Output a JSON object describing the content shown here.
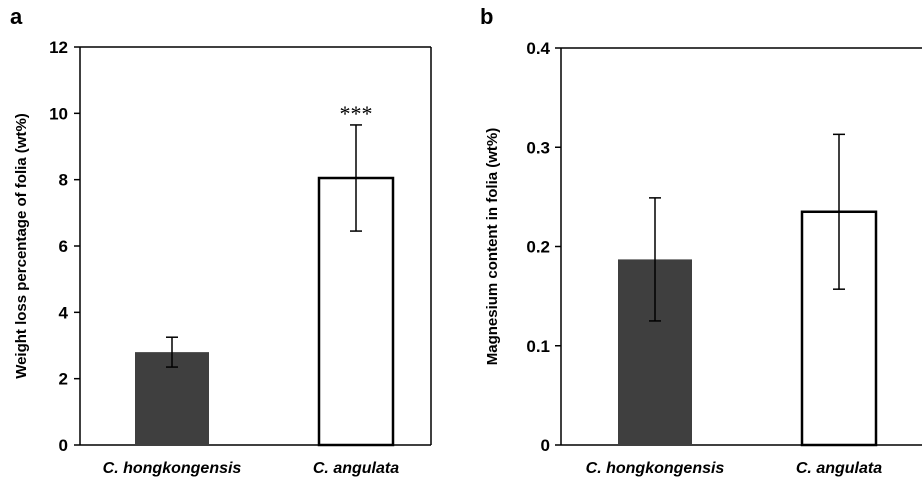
{
  "chart_data": [
    {
      "panel": "a",
      "type": "bar",
      "ylabel": "Weight loss percentage of folia (wt%)",
      "ylim": [
        0,
        12
      ],
      "yticks": [
        "0",
        "2",
        "4",
        "6",
        "8",
        "10",
        "12"
      ],
      "categories": [
        "C. hongkongensis",
        "C. angulata"
      ],
      "values": [
        2.8,
        8.05
      ],
      "error": [
        0.45,
        1.6
      ],
      "bar_colors": [
        "#3f3f3f",
        "#ffffff"
      ],
      "annotations": [
        "",
        "***"
      ],
      "grid": false
    },
    {
      "panel": "b",
      "type": "bar",
      "ylabel": "Magnesium content in folia (wt%)",
      "ylim": [
        0,
        0.4
      ],
      "yticks": [
        "0",
        "0.1",
        "0.2",
        "0.3",
        "0.4"
      ],
      "categories": [
        "C. hongkongensis",
        "C. angulata"
      ],
      "values": [
        0.187,
        0.235
      ],
      "error": [
        0.062,
        0.078
      ],
      "bar_colors": [
        "#3f3f3f",
        "#ffffff"
      ],
      "annotations": [
        "",
        ""
      ],
      "grid": false
    }
  ]
}
